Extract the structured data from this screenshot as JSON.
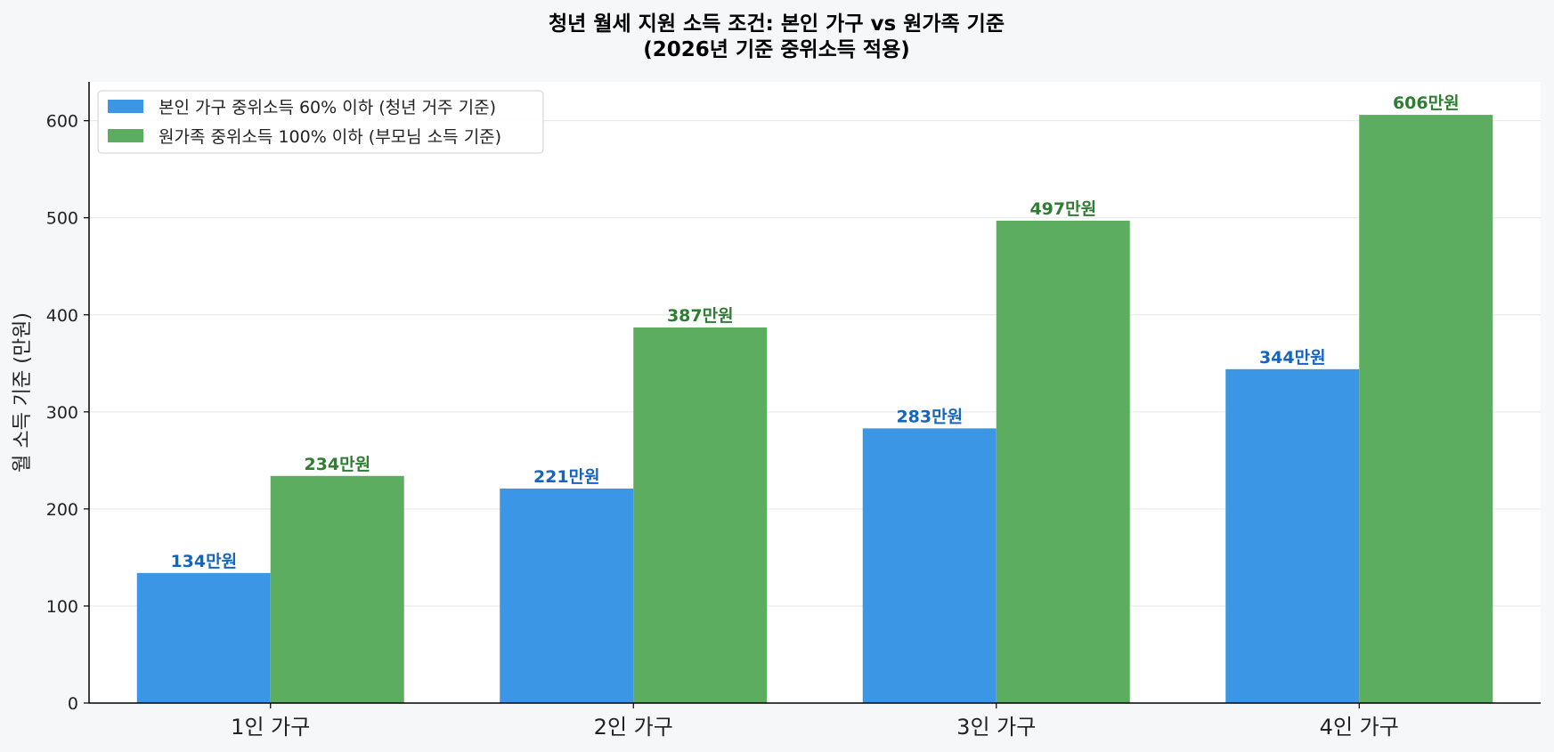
{
  "chart_data": {
    "type": "bar",
    "title_line1": "청년 월세 지원 소득 조건: 본인 가구 vs 원가족 기준",
    "title_line2": "(2026년 기준 중위소득 적용)",
    "xlabel": "",
    "ylabel": "월 소득 기준 (만원)",
    "ylim": [
      0,
      640
    ],
    "yticks": [
      0,
      100,
      200,
      300,
      400,
      500,
      600
    ],
    "grid": true,
    "legend_position": "top-left",
    "categories": [
      "1인 가구",
      "2인 가구",
      "3인 가구",
      "4인 가구"
    ],
    "value_suffix": "만원",
    "series": [
      {
        "name": "본인 가구 중위소득 60% 이하 (청년 거주 기준)",
        "values": [
          134,
          221,
          283,
          344
        ],
        "color": "#3b97e6",
        "label_color": "#1565c0"
      },
      {
        "name": "원가족 중위소득 100% 이하 (부모님 소득 기준)",
        "values": [
          234,
          387,
          497,
          606
        ],
        "color": "#5cad5f",
        "label_color": "#2e7d32"
      }
    ]
  }
}
